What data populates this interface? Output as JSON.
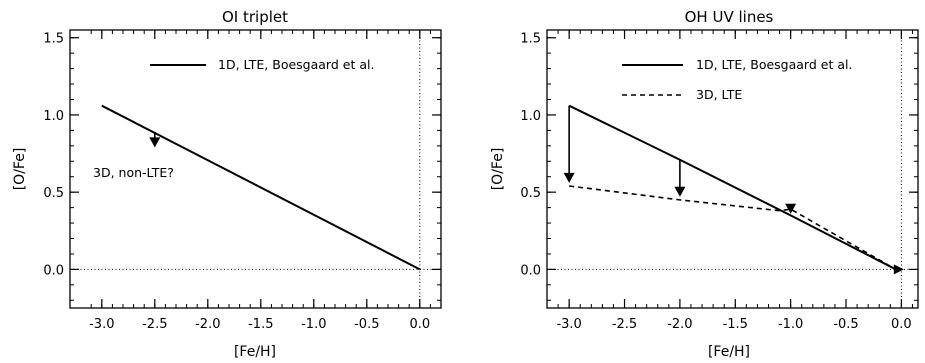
{
  "chart_data": [
    {
      "type": "line",
      "title": "OI triplet",
      "xlabel": "[Fe/H]",
      "ylabel": "[O/Fe]",
      "xlim": [
        -3.3,
        0.2
      ],
      "ylim": [
        -0.25,
        1.55
      ],
      "xticks": [
        -3.0,
        -2.5,
        -2.0,
        -1.5,
        -1.0,
        -0.5,
        0.0
      ],
      "xtick_labels": [
        "-3.0",
        "-2.5",
        "-2.0",
        "-1.5",
        "-1.0",
        "-0.5",
        "0.0"
      ],
      "yticks": [
        0.0,
        0.5,
        1.0,
        1.5
      ],
      "ytick_labels": [
        "0.0",
        "0.5",
        "1.0",
        "1.5"
      ],
      "reference_lines": {
        "x": 0.0,
        "y": 0.0,
        "style": "dotted"
      },
      "legend_position": "top-right",
      "series": [
        {
          "name": "1D, LTE, Boesgaard et al.",
          "style": "solid",
          "x": [
            -3.0,
            0.0
          ],
          "y": [
            1.06,
            0.0
          ]
        }
      ],
      "arrows": [
        {
          "x": -2.5,
          "from": 0.89,
          "to": 0.79
        }
      ],
      "annotations": [
        {
          "text": "3D, non-LTE?",
          "x": -2.95,
          "y": 0.47
        }
      ]
    },
    {
      "type": "line",
      "title": "OH UV lines",
      "xlabel": "[Fe/H]",
      "ylabel": "[O/Fe]",
      "xlim": [
        -3.2,
        0.15
      ],
      "ylim": [
        -0.25,
        1.55
      ],
      "xticks": [
        -3.0,
        -2.5,
        -2.0,
        -1.5,
        -1.0,
        -0.5,
        0.0
      ],
      "xtick_labels": [
        "-3.0",
        "-2.5",
        "-2.0",
        "-1.5",
        "-1.0",
        "-0.5",
        "0.0"
      ],
      "yticks": [
        0.0,
        0.5,
        1.0,
        1.5
      ],
      "ytick_labels": [
        "0.0",
        "0.5",
        "1.0",
        "1.5"
      ],
      "reference_lines": {
        "x": 0.0,
        "y": 0.0,
        "style": "dotted"
      },
      "legend_position": "top-right",
      "series": [
        {
          "name": "1D, LTE, Boesgaard et al.",
          "style": "solid",
          "x": [
            -3.0,
            -2.0,
            -1.0,
            -0.05
          ],
          "y": [
            1.06,
            0.71,
            0.35,
            0.0
          ]
        },
        {
          "name": "3D, LTE",
          "style": "dashed",
          "x": [
            -3.0,
            -2.0,
            -1.1,
            -1.0,
            -0.05
          ],
          "y": [
            0.54,
            0.45,
            0.38,
            0.39,
            0.0
          ]
        }
      ],
      "arrows": [
        {
          "x": -3.0,
          "from": 1.06,
          "to": 0.56
        },
        {
          "x": -2.0,
          "from": 0.71,
          "to": 0.47
        },
        {
          "x": -1.0,
          "from": 0.38,
          "to": 0.36
        },
        {
          "x": -0.05,
          "from": 0.0,
          "to": 0.0,
          "direction": "right"
        }
      ],
      "annotations": []
    }
  ]
}
